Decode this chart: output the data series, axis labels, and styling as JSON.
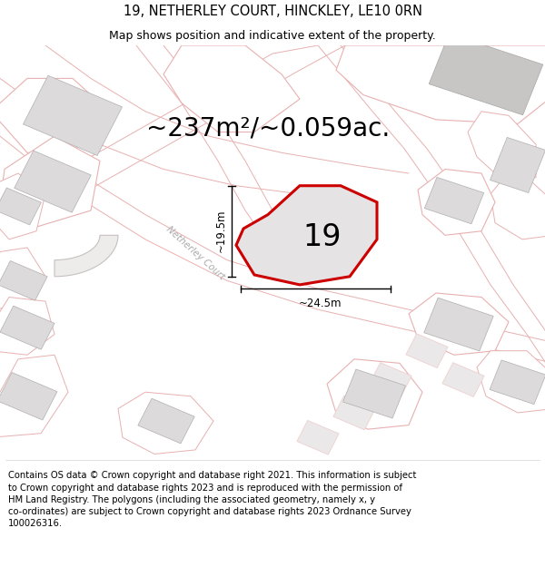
{
  "title": "19, NETHERLEY COURT, HINCKLEY, LE10 0RN",
  "subtitle": "Map shows position and indicative extent of the property.",
  "area_text": "~237m²/~0.059ac.",
  "property_number": "19",
  "dim_width": "~24.5m",
  "dim_height": "~19.5m",
  "street_label": "Netherley Court",
  "footer_line1": "Contains OS data © Crown copyright and database right 2021. This information is subject",
  "footer_line2": "to Crown copyright and database rights 2023 and is reproduced with the permission of",
  "footer_line3": "HM Land Registry. The polygons (including the associated geometry, namely x, y",
  "footer_line4": "co-ordinates) are subject to Crown copyright and database rights 2023 Ordnance Survey",
  "footer_line5": "100026316.",
  "map_bg": "#f5f3f3",
  "plot_fill": "#e8e6e6",
  "plot_stroke": "#cc0000",
  "pink_outline": "#e8b0b0",
  "pink_light": "#f0d0d0",
  "grey_fill": "#dcdada",
  "grey_dark": "#c8c5c5",
  "title_fontsize": 10.5,
  "subtitle_fontsize": 9,
  "area_fontsize": 20,
  "footer_fontsize": 7.2,
  "prop_poly_x": [
    295,
    330,
    375,
    415,
    415,
    385,
    330,
    280,
    260,
    268,
    295
  ],
  "prop_poly_y": [
    295,
    330,
    330,
    310,
    265,
    220,
    210,
    222,
    258,
    278,
    295
  ]
}
